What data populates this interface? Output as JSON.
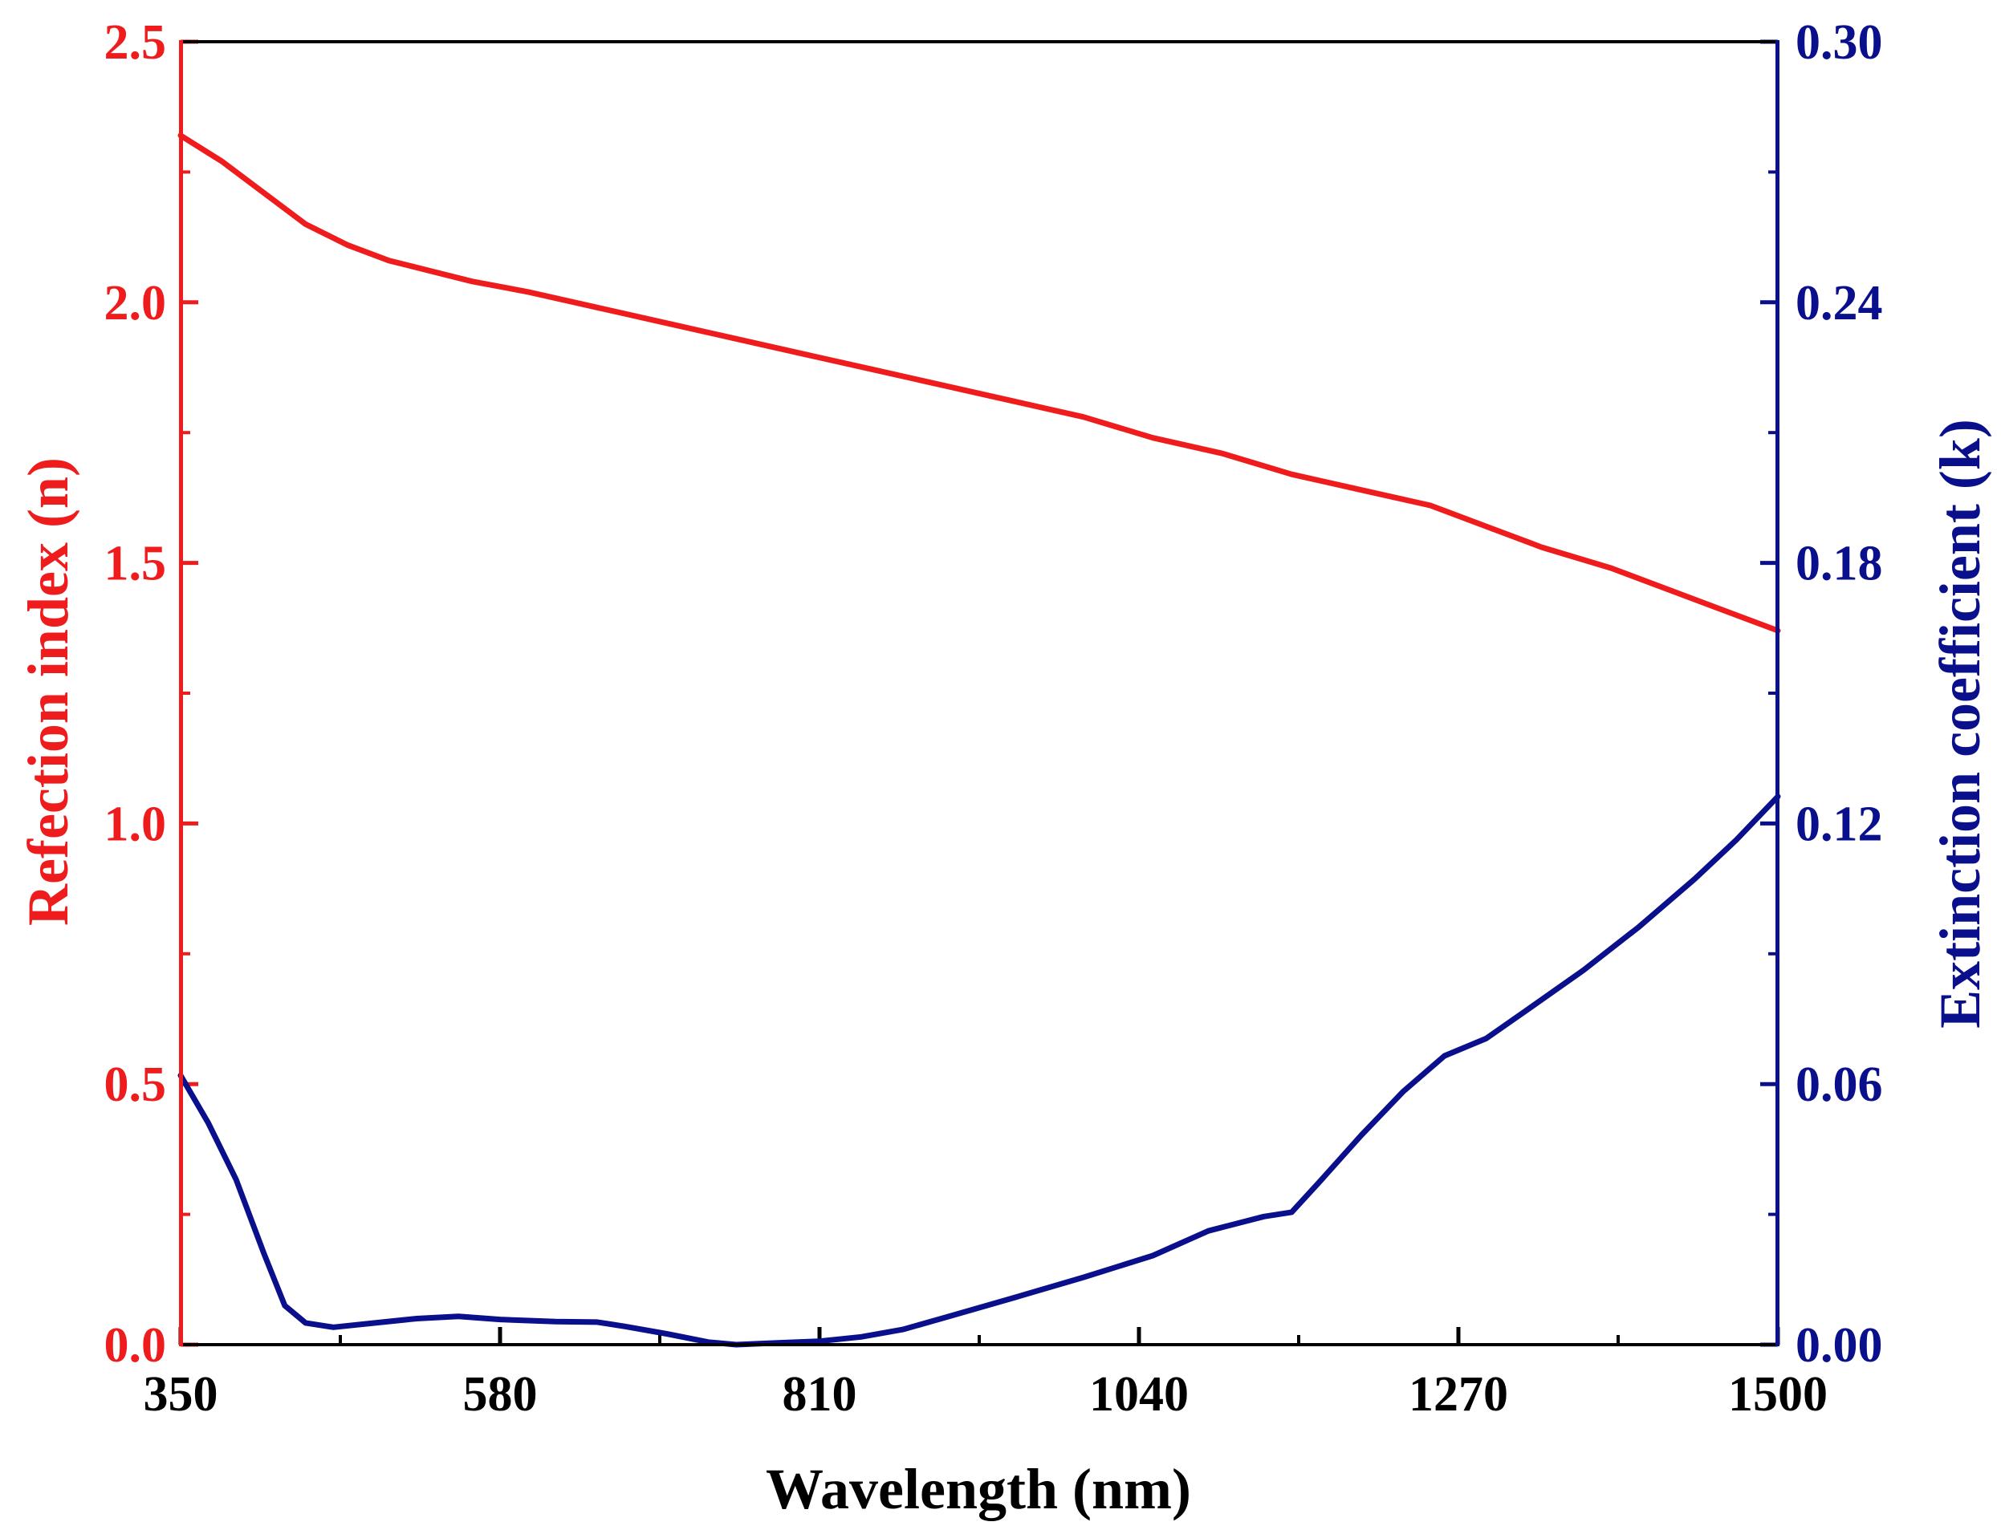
{
  "chart_data": {
    "type": "line",
    "title": "",
    "xlabel": "Wavelength (nm)",
    "ylabel": "Refection index (n)",
    "y2label": "Extinction coefficient (k)",
    "xlim": [
      350,
      1500
    ],
    "ylim": [
      0,
      2.5
    ],
    "y2lim": [
      0,
      0.3
    ],
    "x_ticks": [
      "350",
      "580",
      "810",
      "1040",
      "1270",
      "1500"
    ],
    "x_tick_values": [
      350,
      580,
      810,
      1040,
      1270,
      1500
    ],
    "y_ticks": [
      "0.0",
      "0.5",
      "1.0",
      "1.5",
      "2.0",
      "2.5"
    ],
    "y_tick_values": [
      0,
      0.5,
      1.0,
      1.5,
      2.0,
      2.5
    ],
    "y2_ticks": [
      "0.00",
      "0.06",
      "0.12",
      "0.18",
      "0.24",
      "0.30"
    ],
    "y2_tick_values": [
      0,
      0.06,
      0.12,
      0.18,
      0.24,
      0.3
    ],
    "colors": {
      "n": "#ee1c1c",
      "k": "#0a0f8c",
      "frame": "#000000"
    },
    "series": [
      {
        "name": "n",
        "axis": "left",
        "x": [
          350,
          380,
          410,
          440,
          470,
          500,
          530,
          560,
          600,
          650,
          700,
          750,
          800,
          850,
          900,
          950,
          1000,
          1050,
          1100,
          1150,
          1200,
          1250,
          1290,
          1330,
          1380,
          1430,
          1470,
          1500
        ],
        "values": [
          2.32,
          2.27,
          2.21,
          2.15,
          2.11,
          2.08,
          2.06,
          2.04,
          2.02,
          1.99,
          1.96,
          1.93,
          1.9,
          1.87,
          1.84,
          1.81,
          1.78,
          1.74,
          1.71,
          1.67,
          1.64,
          1.61,
          1.57,
          1.53,
          1.49,
          1.44,
          1.4,
          1.37
        ]
      },
      {
        "name": "k",
        "axis": "right",
        "x": [
          350,
          370,
          390,
          410,
          425,
          440,
          460,
          490,
          520,
          550,
          580,
          620,
          650,
          670,
          700,
          730,
          750,
          780,
          810,
          840,
          870,
          900,
          950,
          1000,
          1050,
          1090,
          1130,
          1150,
          1170,
          1200,
          1230,
          1260,
          1290,
          1320,
          1360,
          1400,
          1440,
          1470,
          1500
        ],
        "values": [
          0.062,
          0.051,
          0.038,
          0.021,
          0.009,
          0.005,
          0.004,
          0.005,
          0.006,
          0.0065,
          0.0058,
          0.0053,
          0.0052,
          0.0042,
          0.0025,
          0.0006,
          0.0,
          0.0004,
          0.0008,
          0.0018,
          0.0035,
          0.0062,
          0.0108,
          0.0155,
          0.0205,
          0.0262,
          0.0295,
          0.0305,
          0.0375,
          0.0482,
          0.0582,
          0.0665,
          0.0705,
          0.0772,
          0.0862,
          0.0962,
          0.1072,
          0.1162,
          0.1262
        ]
      }
    ]
  }
}
